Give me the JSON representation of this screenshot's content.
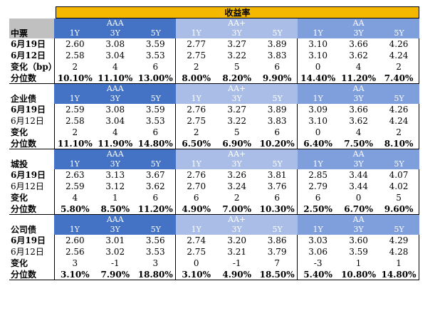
{
  "title": "收益率",
  "group_names": [
    "AAA",
    "AA+",
    "AA"
  ],
  "tenors": [
    "1Y",
    "3Y",
    "5Y"
  ],
  "blocks": [
    {
      "name": "中票",
      "rows": [
        {
          "label": "6月19日",
          "values": [
            "2.60",
            "3.08",
            "3.59",
            "2.77",
            "3.27",
            "3.89",
            "3.10",
            "3.66",
            "4.26"
          ]
        },
        {
          "label": "6月12日",
          "values": [
            "2.58",
            "3.04",
            "3.53",
            "2.75",
            "3.22",
            "3.83",
            "3.10",
            "3.62",
            "4.24"
          ]
        },
        {
          "label": "变化（bp）",
          "values": [
            "2",
            "4",
            "6",
            "2",
            "5",
            "6",
            "0",
            "4",
            "2"
          ]
        },
        {
          "label": "分位数",
          "values": [
            "10.10%",
            "11.10%",
            "13.00%",
            "8.00%",
            "8.20%",
            "9.90%",
            "14.40%",
            "11.20%",
            "7.40%"
          ]
        }
      ]
    },
    {
      "name": "企业债",
      "rows": [
        {
          "label": "6月19日",
          "values": [
            "2.59",
            "3.08",
            "3.59",
            "2.76",
            "3.27",
            "3.89",
            "3.09",
            "3.66",
            "4.26"
          ]
        },
        {
          "label": "6月12日",
          "values": [
            "2.58",
            "3.04",
            "3.53",
            "2.75",
            "3.22",
            "3.83",
            "3.10",
            "3.62",
            "4.24"
          ]
        },
        {
          "label": "变化",
          "values": [
            "2",
            "4",
            "6",
            "2",
            "5",
            "6",
            "0",
            "4",
            "2"
          ]
        },
        {
          "label": "分位数",
          "values": [
            "11.10%",
            "11.90%",
            "14.80%",
            "6.50%",
            "6.90%",
            "10.20%",
            "6.40%",
            "7.50%",
            "8.10%"
          ]
        }
      ]
    },
    {
      "name": "城投",
      "rows": [
        {
          "label": "6月19日",
          "values": [
            "2.63",
            "3.13",
            "3.67",
            "2.76",
            "3.26",
            "3.81",
            "2.85",
            "3.44",
            "4.07"
          ]
        },
        {
          "label": "6月12日",
          "values": [
            "2.59",
            "3.12",
            "3.62",
            "2.70",
            "3.24",
            "3.76",
            "2.79",
            "3.44",
            "4.02"
          ]
        },
        {
          "label": "变化",
          "values": [
            "4",
            "1",
            "6",
            "6",
            "2",
            "6",
            "6",
            "0",
            "5"
          ]
        },
        {
          "label": "分位数",
          "values": [
            "5.80%",
            "8.50%",
            "11.20%",
            "4.90%",
            "7.00%",
            "10.30%",
            "2.50%",
            "6.70%",
            "9.60%"
          ]
        }
      ]
    },
    {
      "name": "公司债",
      "rows": [
        {
          "label": "6月19日",
          "values": [
            "2.60",
            "3.01",
            "3.56",
            "2.74",
            "3.20",
            "3.86",
            "3.03",
            "3.60",
            "4.29"
          ]
        },
        {
          "label": "6月12日",
          "values": [
            "2.56",
            "3.02",
            "3.53",
            "2.75",
            "3.21",
            "3.79",
            "3.06",
            "3.59",
            "4.28"
          ]
        },
        {
          "label": "变化",
          "values": [
            "3",
            "-1",
            "3",
            "0",
            "-1",
            "7",
            "-3",
            "1",
            "1"
          ]
        },
        {
          "label": "分位数",
          "values": [
            "3.10%",
            "7.90%",
            "18.80%",
            "3.10%",
            "4.90%",
            "18.50%",
            "5.40%",
            "10.80%",
            "14.80%"
          ]
        }
      ]
    }
  ]
}
